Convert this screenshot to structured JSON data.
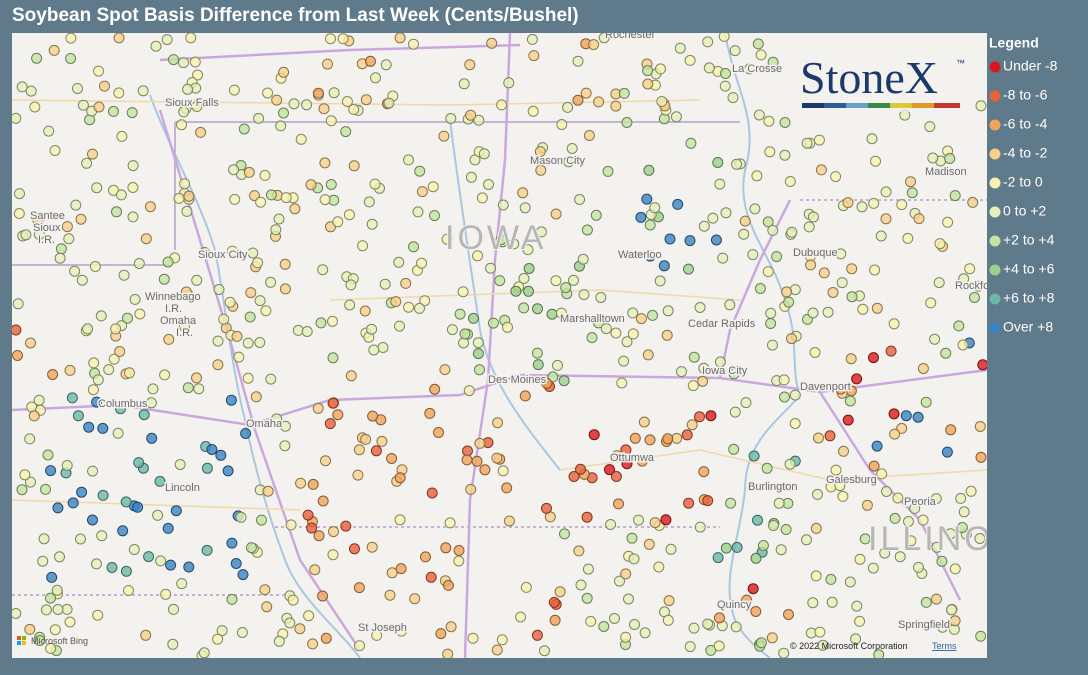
{
  "header": {
    "title": "Soybean Spot Basis Difference from Last Week (Cents/Bushel)"
  },
  "legend": {
    "title": "Legend",
    "items": [
      {
        "label": "Under -8",
        "color": "#d7191c"
      },
      {
        "label": "-8 to -6",
        "color": "#e8603c"
      },
      {
        "label": "-6 to -4",
        "color": "#f0a35a"
      },
      {
        "label": "-4 to -2",
        "color": "#f7cf8a"
      },
      {
        "label": "-2 to 0",
        "color": "#f6f2b0"
      },
      {
        "label": "0 to +2",
        "color": "#e4f0b8"
      },
      {
        "label": "+2 to +4",
        "color": "#c3e3a0"
      },
      {
        "label": "+4 to +6",
        "color": "#9ccf8e"
      },
      {
        "label": "+6 to +8",
        "color": "#6cb6a8"
      },
      {
        "label": "Over +8",
        "color": "#3a83c2"
      }
    ]
  },
  "logo": {
    "text": "StoneX",
    "mark": "™"
  },
  "map": {
    "labels": [
      "Rochester",
      "La Crosse",
      "Sioux Falls",
      "Mason City",
      "Madison",
      "Santee",
      "Sioux",
      "I.R.",
      "Sioux City",
      "IOWA",
      "Waterloo",
      "Dubuque",
      "Rockford",
      "Winnebago",
      "I.R.",
      "Omaha",
      "I.R.",
      "Marshalltown",
      "Cedar Rapids",
      "Columbus",
      "Des Moines",
      "Iowa City",
      "Davenport",
      "Omaha",
      "Ottumwa",
      "Galesburg",
      "Lincoln",
      "Burlington",
      "Peoria",
      "ILLINOIS",
      "Quincy",
      "St Joseph",
      "Springfield"
    ]
  },
  "attribution": {
    "provider": "Microsoft Bing",
    "copyright": "© 2022 Microsoft Corporation",
    "terms": "Terms"
  }
}
